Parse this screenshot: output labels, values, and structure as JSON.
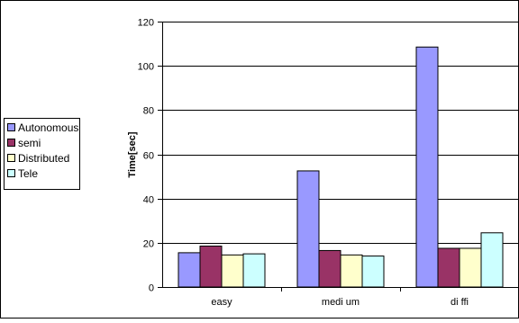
{
  "chart_data": {
    "type": "bar",
    "categories": [
      "easy",
      "medi um",
      "di ffi"
    ],
    "series": [
      {
        "name": "Autonomous",
        "values": [
          15.5,
          52.5,
          108.5
        ]
      },
      {
        "name": "semi",
        "values": [
          18.5,
          16.5,
          17.5
        ]
      },
      {
        "name": "Distributed",
        "values": [
          14.5,
          14.5,
          17.5
        ]
      },
      {
        "name": "Tele",
        "values": [
          15,
          14,
          24.5
        ]
      }
    ],
    "ylabel": "Time[sec]",
    "xlabel": "",
    "ylim": [
      0,
      120
    ],
    "yticks": [
      "0",
      "20",
      "40",
      "60",
      "80",
      "100",
      "120"
    ],
    "grid": true,
    "legend_position": "left",
    "colors": {
      "Autonomous": "#9999ff",
      "semi": "#993366",
      "Distributed": "#ffffcc",
      "Tele": "#ccffff",
      "grid": "#000000",
      "frame": "#000000"
    }
  }
}
